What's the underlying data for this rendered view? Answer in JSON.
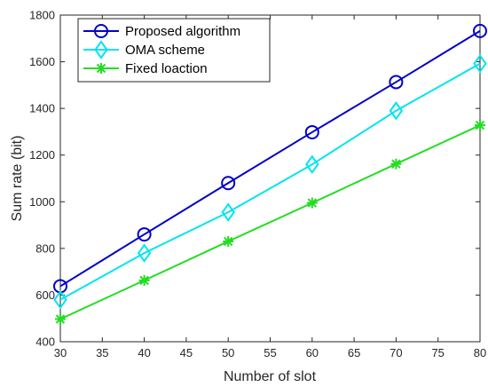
{
  "chart_data": {
    "type": "line",
    "title": "",
    "xlabel": "Number of slot",
    "ylabel": "Sum rate (bit)",
    "x": [
      30,
      40,
      50,
      60,
      70,
      80
    ],
    "xlim": [
      30,
      80
    ],
    "ylim": [
      400,
      1800
    ],
    "xticks": [
      30,
      35,
      40,
      45,
      50,
      55,
      60,
      65,
      70,
      75,
      80
    ],
    "yticks": [
      400,
      600,
      800,
      1000,
      1200,
      1400,
      1600,
      1800
    ],
    "grid": false,
    "legend_position": "top-left",
    "series": [
      {
        "name": "Proposed algorithm",
        "values": [
          638,
          860,
          1080,
          1298,
          1513,
          1732
        ],
        "color": "#0000CC",
        "marker": "circle"
      },
      {
        "name": "OMA scheme",
        "values": [
          580,
          780,
          955,
          1160,
          1390,
          1592
        ],
        "color": "#00E5EE",
        "marker": "diamond"
      },
      {
        "name": "Fixed loaction",
        "values": [
          497,
          663,
          830,
          995,
          1162,
          1328
        ],
        "color": "#22DD22",
        "marker": "asterisk"
      }
    ]
  }
}
